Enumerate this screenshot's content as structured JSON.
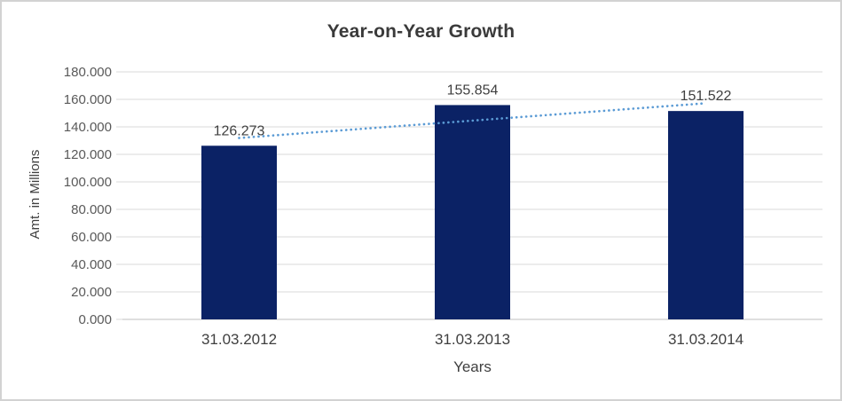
{
  "window": {
    "background": "#ffffff",
    "border_color": "#d2d2d2"
  },
  "chart_data": {
    "type": "bar",
    "title": "Year-on-Year Growth",
    "categories": [
      "31.03.2012",
      "31.03.2013",
      "31.03.2014"
    ],
    "values": [
      126.273,
      155.854,
      151.522
    ],
    "data_labels": [
      "126.273",
      "155.854",
      "151.522"
    ],
    "xlabel": "Years",
    "ylabel": "Amt. in Millions",
    "ylim": [
      0,
      180
    ],
    "ytick_step": 20,
    "ytick_labels": [
      "0.000",
      "20.000",
      "40.000",
      "60.000",
      "80.000",
      "100.000",
      "120.000",
      "140.000",
      "160.000",
      "180.000"
    ],
    "grid": true,
    "legend_position": "none",
    "bar_color": "#0b2265",
    "trendline": {
      "type": "linear",
      "style": "dotted",
      "color": "#5b9bd5"
    },
    "gridline_color": "#d9d9d9",
    "axis_line_color": "#bfbfbf",
    "title_color": "#3a3a3a",
    "ytick_label_color": "#595959",
    "xtick_label_color": "#3f3f3f",
    "data_label_color": "#404040"
  }
}
